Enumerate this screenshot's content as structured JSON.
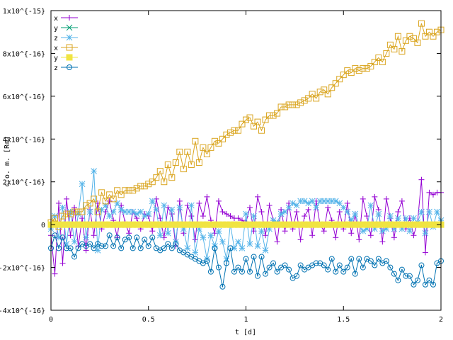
{
  "chart_data": {
    "type": "line",
    "xlabel": "t [d]",
    "ylabel": "c.o. m. [R⊙]",
    "xlim": [
      0,
      2
    ],
    "ylim": [
      -4e-16,
      1e-15
    ],
    "grid": false,
    "legend": "top-left",
    "x_ticks": [
      {
        "value": 0,
        "label": "0"
      },
      {
        "value": 0.5,
        "label": "0.5"
      },
      {
        "value": 1,
        "label": "1"
      },
      {
        "value": 1.5,
        "label": "1.5"
      },
      {
        "value": 2,
        "label": "2"
      }
    ],
    "y_ticks": [
      {
        "value": 1e-15,
        "label": "1x10^{-15}"
      },
      {
        "value": 8e-16,
        "label": "8x10^{-16}"
      },
      {
        "value": 6e-16,
        "label": "6x10^{-16}"
      },
      {
        "value": 4e-16,
        "label": "4x10^{-16}"
      },
      {
        "value": 2e-16,
        "label": "2x10^{-16}"
      },
      {
        "value": 0,
        "label": "0"
      },
      {
        "value": -2e-16,
        "label": "-2x10^{-16}"
      },
      {
        "value": -4e-16,
        "label": "-4x10^{-16}"
      }
    ],
    "series": [
      {
        "name": "x",
        "color": "#9400d3",
        "marker": "plus",
        "x": [
          0.0,
          0.02,
          0.04,
          0.06,
          0.08,
          0.1,
          0.12,
          0.14,
          0.16,
          0.18,
          0.2,
          0.22,
          0.24,
          0.26,
          0.28,
          0.3,
          0.32,
          0.34,
          0.36,
          0.38,
          0.4,
          0.42,
          0.44,
          0.46,
          0.48,
          0.5,
          0.52,
          0.54,
          0.56,
          0.58,
          0.6,
          0.62,
          0.64,
          0.66,
          0.68,
          0.7,
          0.72,
          0.74,
          0.76,
          0.78,
          0.8,
          0.82,
          0.84,
          0.86,
          0.88,
          0.9,
          0.92,
          0.94,
          0.96,
          0.98,
          1.0,
          1.02,
          1.04,
          1.06,
          1.08,
          1.1,
          1.12,
          1.14,
          1.16,
          1.18,
          1.2,
          1.22,
          1.24,
          1.26,
          1.28,
          1.3,
          1.32,
          1.34,
          1.36,
          1.38,
          1.4,
          1.42,
          1.44,
          1.46,
          1.48,
          1.5,
          1.52,
          1.54,
          1.56,
          1.58,
          1.6,
          1.62,
          1.64,
          1.66,
          1.68,
          1.7,
          1.72,
          1.74,
          1.76,
          1.78,
          1.8,
          1.82,
          1.84,
          1.86,
          1.88,
          1.9,
          1.92,
          1.94,
          1.96,
          1.98,
          2.0
        ],
        "y": [
          -5e-17,
          -2.3e-16,
          1e-16,
          -1.8e-16,
          1.2e-16,
          -5e-17,
          8e-17,
          -1e-16,
          3e-17,
          -1.2e-16,
          7e-17,
          -5e-17,
          1e-16,
          -2e-17,
          6e-17,
          1.1e-16,
          2e-17,
          -6e-17,
          9e-17,
          1e-17,
          -4e-17,
          6e-17,
          3e-17,
          -2e-17,
          5e-17,
          4e-17,
          -3e-17,
          1.2e-16,
          3e-17,
          -6e-17,
          8e-17,
          5e-17,
          -1e-16,
          1.1e-16,
          -4e-17,
          9e-17,
          4e-17,
          -7e-17,
          1e-16,
          4e-17,
          1.3e-16,
          2e-17,
          -4e-17,
          1.1e-16,
          6e-17,
          5e-17,
          4e-17,
          3e-17,
          3e-17,
          2e-17,
          1e-17,
          8e-17,
          -3e-17,
          1.3e-16,
          6e-17,
          -5e-17,
          9e-17,
          2e-17,
          -8e-17,
          7e-17,
          -3e-17,
          1e-16,
          -2e-17,
          6e-17,
          -7e-17,
          4e-17,
          7e-17,
          -5e-17,
          1.1e-16,
          0.0,
          -3e-17,
          8e-17,
          2e-17,
          -6e-17,
          6e-17,
          -2e-17,
          1e-16,
          -4e-17,
          5e-17,
          -7e-17,
          1.2e-16,
          4e-17,
          -5e-17,
          1.3e-16,
          7e-17,
          -8e-17,
          1.2e-16,
          3e-17,
          -6e-17,
          6e-17,
          1.1e-16,
          -2e-17,
          3e-17,
          -5e-17,
          1e-17,
          2.1e-16,
          -1.3e-16,
          1.5e-16,
          1.4e-16,
          1.5e-16,
          1.5e-16
        ]
      },
      {
        "name": "y",
        "color": "#009e73",
        "marker": "cross",
        "x": [
          0.0,
          2.0
        ],
        "y": [
          0.0,
          0.0
        ]
      },
      {
        "name": "z",
        "color": "#56b4e9",
        "marker": "star",
        "x": [
          0.0,
          0.02,
          0.04,
          0.06,
          0.08,
          0.1,
          0.12,
          0.14,
          0.16,
          0.18,
          0.2,
          0.22,
          0.24,
          0.26,
          0.28,
          0.3,
          0.32,
          0.34,
          0.36,
          0.38,
          0.4,
          0.42,
          0.44,
          0.46,
          0.48,
          0.5,
          0.52,
          0.54,
          0.56,
          0.58,
          0.6,
          0.62,
          0.64,
          0.66,
          0.68,
          0.7,
          0.72,
          0.74,
          0.76,
          0.78,
          0.8,
          0.82,
          0.84,
          0.86,
          0.88,
          0.9,
          0.92,
          0.94,
          0.96,
          0.98,
          1.0,
          1.02,
          1.04,
          1.06,
          1.08,
          1.1,
          1.12,
          1.14,
          1.16,
          1.18,
          1.2,
          1.22,
          1.24,
          1.26,
          1.28,
          1.3,
          1.32,
          1.34,
          1.36,
          1.38,
          1.4,
          1.42,
          1.44,
          1.46,
          1.48,
          1.5,
          1.52,
          1.54,
          1.56,
          1.58,
          1.6,
          1.62,
          1.64,
          1.66,
          1.68,
          1.7,
          1.72,
          1.74,
          1.76,
          1.78,
          1.8,
          1.82,
          1.84,
          1.86,
          1.88,
          1.9,
          1.92,
          1.94,
          1.96,
          1.98,
          2.0
        ],
        "y": [
          -2e-17,
          4e-17,
          -6e-17,
          8e-17,
          -9e-17,
          6e-17,
          -8e-17,
          5e-17,
          1.9e-16,
          -6e-17,
          6e-17,
          2.5e-16,
          -1.2e-16,
          7e-17,
          9e-17,
          4e-17,
          6e-17,
          1e-16,
          7e-17,
          6e-17,
          6e-17,
          6e-17,
          5e-17,
          6e-17,
          4e-17,
          5e-17,
          1.1e-16,
          7e-17,
          -5e-17,
          9e-17,
          -4e-17,
          7e-17,
          -8e-17,
          8e-17,
          -2e-17,
          -1.1e-16,
          9e-17,
          -1.3e-16,
          -2e-17,
          -6e-17,
          -1.6e-16,
          -5e-17,
          -1e-16,
          -3e-17,
          -8e-17,
          -1.6e-16,
          0.0,
          -1.1e-16,
          -8e-17,
          -1.1e-16,
          5e-17,
          -9e-17,
          4e-17,
          -1e-16,
          -3e-17,
          -1.2e-16,
          -2e-17,
          2e-17,
          1e-17,
          5e-17,
          6e-17,
          8e-17,
          1e-16,
          9e-17,
          1.1e-16,
          1.1e-16,
          1e-16,
          1.1e-16,
          8e-17,
          1.1e-16,
          1.1e-16,
          1.1e-16,
          1.1e-16,
          1.1e-16,
          1e-16,
          8e-17,
          6e-17,
          2e-17,
          5e-17,
          0.0,
          -3e-17,
          -2e-17,
          9e-17,
          -2e-17,
          5e-17,
          -3e-17,
          -2e-17,
          4e-17,
          -2e-17,
          3e-17,
          -2e-17,
          3e-17,
          -3e-17,
          3e-17,
          1e-17,
          6e-17,
          -4e-17,
          6e-17,
          -1e-17,
          6e-17,
          2e-17
        ]
      },
      {
        "name": "x",
        "color": "#daa520",
        "marker": "open-square",
        "x": [
          0.0,
          0.02,
          0.04,
          0.06,
          0.08,
          0.1,
          0.12,
          0.14,
          0.16,
          0.18,
          0.2,
          0.22,
          0.24,
          0.26,
          0.28,
          0.3,
          0.32,
          0.34,
          0.36,
          0.38,
          0.4,
          0.42,
          0.44,
          0.46,
          0.48,
          0.5,
          0.52,
          0.54,
          0.56,
          0.58,
          0.6,
          0.62,
          0.64,
          0.66,
          0.68,
          0.7,
          0.72,
          0.74,
          0.76,
          0.78,
          0.8,
          0.82,
          0.84,
          0.86,
          0.88,
          0.9,
          0.92,
          0.94,
          0.96,
          0.98,
          1.0,
          1.02,
          1.04,
          1.06,
          1.08,
          1.1,
          1.12,
          1.14,
          1.16,
          1.18,
          1.2,
          1.22,
          1.24,
          1.26,
          1.28,
          1.3,
          1.32,
          1.34,
          1.36,
          1.38,
          1.4,
          1.42,
          1.44,
          1.46,
          1.48,
          1.5,
          1.52,
          1.54,
          1.56,
          1.58,
          1.6,
          1.62,
          1.64,
          1.66,
          1.68,
          1.7,
          1.72,
          1.74,
          1.76,
          1.78,
          1.8,
          1.82,
          1.84,
          1.86,
          1.88,
          1.9,
          1.92,
          1.94,
          1.96,
          1.98,
          2.0
        ],
        "y": [
          1e-17,
          3e-17,
          -1e-17,
          4e-17,
          5e-17,
          5e-17,
          6e-17,
          6e-17,
          6e-17,
          9e-17,
          1e-16,
          1.2e-16,
          6e-17,
          1.5e-16,
          1.1e-16,
          1.4e-16,
          1.2e-16,
          1.6e-16,
          1.4e-16,
          1.6e-16,
          1.6e-16,
          1.6e-16,
          1.7e-16,
          1.8e-16,
          1.8e-16,
          1.9e-16,
          2e-16,
          2.2e-16,
          2.5e-16,
          2e-16,
          2.8e-16,
          2.2e-16,
          2.9e-16,
          3.4e-16,
          2.6e-16,
          3.4e-16,
          2.8e-16,
          3.9e-16,
          2.9e-16,
          3.6e-16,
          3.3e-16,
          3.6e-16,
          3.9e-16,
          3.8e-16,
          4e-16,
          4.2e-16,
          4.3e-16,
          4.4e-16,
          4.4e-16,
          4.7e-16,
          4.9e-16,
          5e-16,
          4.6e-16,
          4.8e-16,
          4.4e-16,
          4.9e-16,
          5.1e-16,
          5.1e-16,
          5.2e-16,
          5.5e-16,
          5.5e-16,
          5.6e-16,
          5.6e-16,
          5.6e-16,
          5.7e-16,
          5.8e-16,
          5.9e-16,
          6.1e-16,
          5.9e-16,
          6.2e-16,
          6.3e-16,
          6.1e-16,
          6.4e-16,
          6.6e-16,
          6.8e-16,
          7e-16,
          7.2e-16,
          7.1e-16,
          7.3e-16,
          7.2e-16,
          7.3e-16,
          7.3e-16,
          7.4e-16,
          7.6e-16,
          7.8e-16,
          7.6e-16,
          8e-16,
          8.4e-16,
          8.2e-16,
          8.8e-16,
          8.1e-16,
          8.6e-16,
          8.8e-16,
          8.7e-16,
          8.5e-16,
          9.4e-16,
          8.8e-16,
          9e-16,
          8.8e-16,
          9e-16,
          9.1e-16
        ]
      },
      {
        "name": "y",
        "color": "#f0e442",
        "marker": "filled-square",
        "x": [
          0.0,
          0.02,
          0.04,
          0.06,
          0.08,
          0.1,
          0.12,
          0.14,
          0.16,
          0.18,
          0.2,
          0.22,
          0.24,
          0.26,
          0.28,
          0.3,
          0.32,
          0.34,
          0.36,
          0.38,
          0.4,
          0.42,
          0.44,
          0.46,
          0.48,
          0.5,
          0.52,
          0.54,
          0.56,
          0.58,
          0.6,
          0.62,
          0.64,
          0.66,
          0.68,
          0.7,
          0.72,
          0.74,
          0.76,
          0.78,
          0.8,
          0.82,
          0.84,
          0.86,
          0.88,
          0.9,
          0.92,
          0.94,
          0.96,
          0.98,
          1.0,
          1.02,
          1.04,
          1.06,
          1.08,
          1.1,
          1.12,
          1.14,
          1.16,
          1.18,
          1.2,
          1.22,
          1.24,
          1.26,
          1.28,
          1.3,
          1.32,
          1.34,
          1.36,
          1.38,
          1.4,
          1.42,
          1.44,
          1.46,
          1.48,
          1.5,
          1.52,
          1.54,
          1.56,
          1.58,
          1.6,
          1.62,
          1.64,
          1.66,
          1.68,
          1.7,
          1.72,
          1.74,
          1.76,
          1.78,
          1.8,
          1.82,
          1.84,
          1.86,
          1.88,
          1.9,
          1.92,
          1.94,
          1.96,
          1.98,
          2.0
        ],
        "y": [
          0,
          0,
          0,
          0,
          0,
          0,
          0,
          0,
          0,
          0,
          0,
          0,
          0,
          0,
          0,
          0,
          0,
          0,
          0,
          0,
          0,
          0,
          0,
          0,
          0,
          0,
          0,
          0,
          0,
          0,
          0,
          0,
          0,
          0,
          0,
          0,
          0,
          0,
          0,
          0,
          0,
          0,
          0,
          0,
          0,
          0,
          0,
          0,
          0,
          0,
          0,
          0,
          0,
          0,
          0,
          0,
          0,
          0,
          0,
          0,
          0,
          0,
          0,
          0,
          0,
          0,
          0,
          0,
          0,
          0,
          0,
          0,
          0,
          0,
          0,
          0,
          0,
          0,
          0,
          0,
          0,
          0,
          0,
          0,
          0,
          0,
          0,
          0,
          0,
          0,
          0,
          0,
          0,
          0,
          0,
          0,
          0,
          0,
          0,
          0,
          0
        ]
      },
      {
        "name": "z",
        "color": "#0072b2",
        "marker": "open-circle",
        "x": [
          0.0,
          0.02,
          0.04,
          0.06,
          0.08,
          0.1,
          0.12,
          0.14,
          0.16,
          0.18,
          0.2,
          0.22,
          0.24,
          0.26,
          0.28,
          0.3,
          0.32,
          0.34,
          0.36,
          0.38,
          0.4,
          0.42,
          0.44,
          0.46,
          0.48,
          0.5,
          0.52,
          0.54,
          0.56,
          0.58,
          0.6,
          0.62,
          0.64,
          0.66,
          0.68,
          0.7,
          0.72,
          0.74,
          0.76,
          0.78,
          0.8,
          0.82,
          0.84,
          0.86,
          0.88,
          0.9,
          0.92,
          0.94,
          0.96,
          0.98,
          1.0,
          1.02,
          1.04,
          1.06,
          1.08,
          1.1,
          1.12,
          1.14,
          1.16,
          1.18,
          1.2,
          1.22,
          1.24,
          1.26,
          1.28,
          1.3,
          1.32,
          1.34,
          1.36,
          1.38,
          1.4,
          1.42,
          1.44,
          1.46,
          1.48,
          1.5,
          1.52,
          1.54,
          1.56,
          1.58,
          1.6,
          1.62,
          1.64,
          1.66,
          1.68,
          1.7,
          1.72,
          1.74,
          1.76,
          1.78,
          1.8,
          1.82,
          1.84,
          1.86,
          1.88,
          1.9,
          1.92,
          1.94,
          1.96,
          1.98,
          2.0
        ],
        "y": [
          -1.1e-16,
          -5e-17,
          -1.1e-16,
          -6e-17,
          -1.1e-16,
          -1.1e-16,
          -1.5e-16,
          -1.1e-16,
          -9e-17,
          -1e-16,
          -9e-17,
          -1.1e-16,
          -9e-17,
          -1e-16,
          -1e-16,
          -5e-17,
          -1e-16,
          -6e-17,
          -1.1e-16,
          -7e-17,
          -6e-17,
          -1.1e-16,
          -6e-17,
          -1.1e-16,
          -7e-17,
          -1e-16,
          -6e-17,
          -1.1e-16,
          -1.2e-16,
          -1.1e-16,
          -9e-17,
          -1.1e-16,
          -9e-17,
          -1.2e-16,
          -1.3e-16,
          -1.4e-16,
          -1.5e-16,
          -1.6e-16,
          -1.7e-16,
          -1.8e-16,
          -1.7e-16,
          -2.2e-16,
          -1.1e-16,
          -2e-16,
          -2.9e-16,
          -1.8e-16,
          -1.1e-16,
          -2.2e-16,
          -2e-16,
          -2.2e-16,
          -1.6e-16,
          -2.2e-16,
          -1.5e-16,
          -2.4e-16,
          -1.5e-16,
          -2.3e-16,
          -2e-16,
          -1.8e-16,
          -2.2e-16,
          -2e-16,
          -1.9e-16,
          -2.1e-16,
          -2.5e-16,
          -2.4e-16,
          -1.9e-16,
          -2.1e-16,
          -2e-16,
          -1.9e-16,
          -1.8e-16,
          -1.8e-16,
          -1.9e-16,
          -2.1e-16,
          -1.6e-16,
          -2.2e-16,
          -1.9e-16,
          -2.2e-16,
          -2e-16,
          -1.6e-16,
          -2.3e-16,
          -1.6e-16,
          -2e-16,
          -1.6e-16,
          -1.7e-16,
          -1.9e-16,
          -1.6e-16,
          -1.8e-16,
          -1.7e-16,
          -2e-16,
          -2.3e-16,
          -2.6e-16,
          -2.1e-16,
          -2.4e-16,
          -2.4e-16,
          -2.8e-16,
          -2.6e-16,
          -1.9e-16,
          -2.8e-16,
          -2.6e-16,
          -2.8e-16,
          -1.8e-16,
          -1.7e-16
        ]
      }
    ]
  }
}
